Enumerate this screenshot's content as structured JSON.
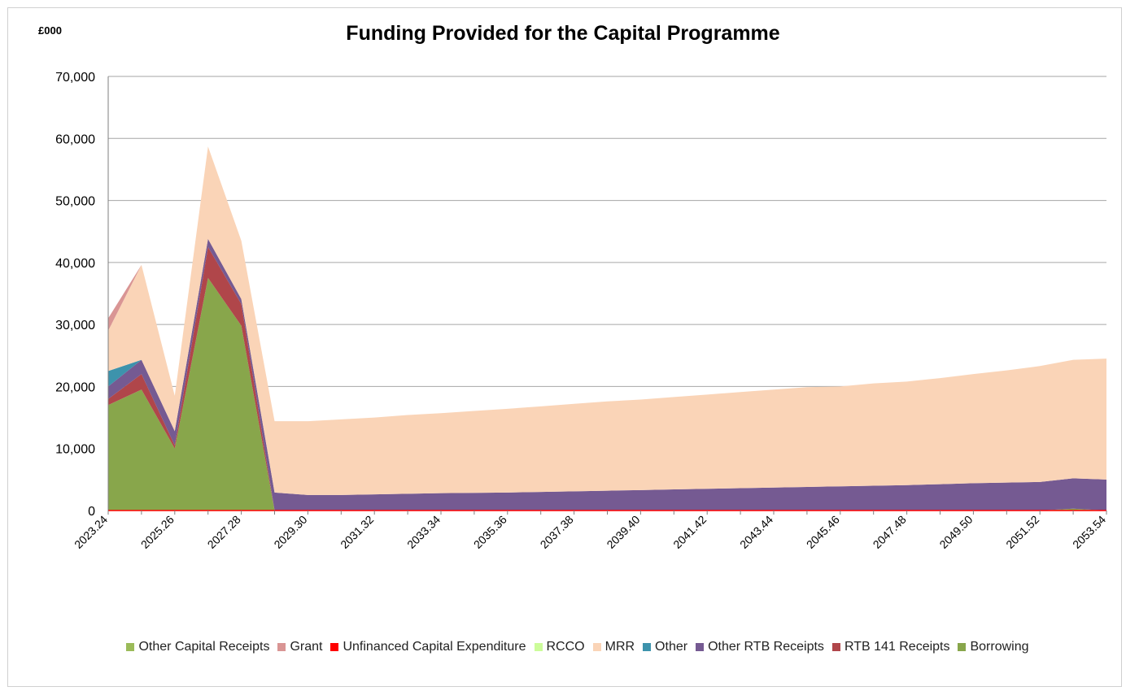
{
  "chart_data": {
    "type": "area",
    "stacked": true,
    "title": "Funding Provided for the Capital Programme",
    "unit_label": "£000",
    "xlabel": "",
    "ylabel": "",
    "ylim": [
      0,
      70000
    ],
    "y_ticks": [
      0,
      10000,
      20000,
      30000,
      40000,
      50000,
      60000,
      70000
    ],
    "y_tick_labels": [
      "0",
      "10,000",
      "20,000",
      "30,000",
      "40,000",
      "50,000",
      "60,000",
      "70,000"
    ],
    "grid": true,
    "legend_position": "bottom",
    "x": [
      "2023.24",
      "2024.25",
      "2025.26",
      "2026.27",
      "2027.28",
      "2028.29",
      "2029.30",
      "2030.31",
      "2031.32",
      "2032.33",
      "2033.34",
      "2034.35",
      "2035.36",
      "2036.37",
      "2037.38",
      "2038.39",
      "2039.40",
      "2040.41",
      "2041.42",
      "2042.43",
      "2043.44",
      "2044.45",
      "2045.46",
      "2046.47",
      "2047.48",
      "2048.49",
      "2049.50",
      "2050.51",
      "2051.52",
      "2052.53",
      "2053.54"
    ],
    "x_tick_labels": [
      "2023.24",
      "2025.26",
      "2027.28",
      "2029.30",
      "2031.32",
      "2033.34",
      "2035.36",
      "2037.38",
      "2039.40",
      "2041.42",
      "2043.44",
      "2045.46",
      "2047.48",
      "2049.50",
      "2051.52",
      "2053.54"
    ],
    "series": [
      {
        "name": "Borrowing",
        "color": "#88a64b",
        "values": [
          17000,
          19500,
          10000,
          37500,
          29800,
          0,
          0,
          0,
          0,
          0,
          0,
          0,
          0,
          0,
          0,
          0,
          0,
          0,
          0,
          0,
          0,
          0,
          0,
          0,
          0,
          0,
          0,
          0,
          0,
          300,
          0
        ]
      },
      {
        "name": "RTB 141 Receipts",
        "color": "#b0464a",
        "values": [
          1000,
          2500,
          500,
          5000,
          3500,
          0,
          0,
          0,
          0,
          0,
          0,
          0,
          0,
          0,
          0,
          0,
          0,
          0,
          0,
          0,
          0,
          0,
          0,
          0,
          0,
          0,
          0,
          0,
          0,
          0,
          0
        ]
      },
      {
        "name": "Other RTB Receipts",
        "color": "#755a92",
        "values": [
          2000,
          2300,
          2300,
          1300,
          800,
          2900,
          2500,
          2500,
          2600,
          2700,
          2800,
          2850,
          2900,
          3000,
          3100,
          3200,
          3300,
          3400,
          3500,
          3600,
          3700,
          3800,
          3900,
          4000,
          4100,
          4250,
          4400,
          4500,
          4600,
          4900,
          5000
        ]
      },
      {
        "name": "Other",
        "color": "#3d93ac",
        "values": [
          2500,
          0,
          0,
          0,
          0,
          0,
          0,
          0,
          0,
          0,
          0,
          0,
          0,
          0,
          0,
          0,
          0,
          0,
          0,
          0,
          0,
          0,
          0,
          0,
          0,
          0,
          0,
          0,
          0,
          0,
          0
        ]
      },
      {
        "name": "MRR",
        "color": "#fad4b7",
        "values": [
          6500,
          15300,
          5700,
          14900,
          9400,
          11500,
          11900,
          12200,
          12400,
          12700,
          12900,
          13200,
          13500,
          13800,
          14100,
          14400,
          14600,
          14900,
          15200,
          15500,
          15800,
          16100,
          16100,
          16500,
          16700,
          17100,
          17600,
          18100,
          18700,
          19100,
          19500
        ]
      },
      {
        "name": "RCCO",
        "color": "#ccfc9a",
        "values": [
          0,
          0,
          0,
          0,
          0,
          0,
          0,
          0,
          0,
          0,
          0,
          0,
          0,
          0,
          0,
          0,
          0,
          0,
          0,
          0,
          0,
          0,
          0,
          0,
          0,
          0,
          0,
          0,
          0,
          0,
          0
        ]
      },
      {
        "name": "Unfinanced Capital Expenditure",
        "color": "#ff0000",
        "values": [
          0,
          0,
          0,
          0,
          0,
          0,
          0,
          0,
          0,
          0,
          0,
          0,
          0,
          0,
          0,
          0,
          0,
          0,
          0,
          0,
          0,
          0,
          0,
          0,
          0,
          0,
          0,
          0,
          0,
          0,
          0
        ]
      },
      {
        "name": "Grant",
        "color": "#d99594",
        "values": [
          2000,
          0,
          0,
          0,
          0,
          0,
          0,
          0,
          0,
          0,
          0,
          0,
          0,
          0,
          0,
          0,
          0,
          0,
          0,
          0,
          0,
          0,
          0,
          0,
          0,
          0,
          0,
          0,
          0,
          0,
          0
        ]
      },
      {
        "name": "Other Capital Receipts",
        "color": "#9bbb59",
        "values": [
          0,
          0,
          0,
          0,
          0,
          0,
          0,
          0,
          0,
          0,
          0,
          0,
          0,
          0,
          0,
          0,
          0,
          0,
          0,
          0,
          0,
          0,
          0,
          0,
          0,
          0,
          0,
          0,
          0,
          0,
          0
        ]
      }
    ],
    "legend_order": [
      "Other Capital Receipts",
      "Grant",
      "Unfinanced Capital Expenditure",
      "RCCO",
      "MRR",
      "Other",
      "Other RTB Receipts",
      "RTB 141 Receipts",
      "Borrowing"
    ]
  }
}
